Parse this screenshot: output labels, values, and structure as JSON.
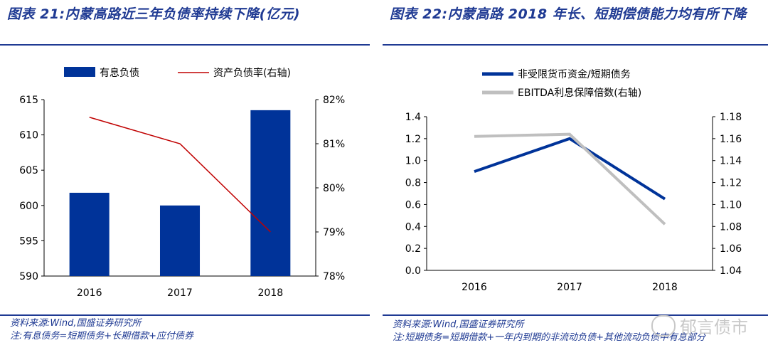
{
  "left": {
    "title": "图表 21:内蒙高路近三年负债率持续下降(亿元)",
    "source": "资料来源:Wind,国盛证券研究所",
    "note": "注:有息债务=短期债务+长期借款+应付债券"
  },
  "right": {
    "title": "图表 22:内蒙高路 2018 年长、短期偿债能力均有所下降",
    "source": "资料来源:Wind,国盛证券研究所",
    "note": "注:短期债务=短期借款+一年内到期的非流动负债+其他流动负债中有息部分"
  },
  "watermark": "郁言债市",
  "chart_data": [
    {
      "type": "bar",
      "categories": [
        "2016",
        "2017",
        "2018"
      ],
      "series": [
        {
          "name": "有息负债",
          "kind": "bar",
          "axis": "left",
          "color": "#003399",
          "values": [
            601.8,
            600.0,
            613.5
          ]
        },
        {
          "name": "资产负债率(右轴)",
          "kind": "line",
          "axis": "right",
          "color": "#c00000",
          "values": [
            81.6,
            81.0,
            79.0
          ]
        }
      ],
      "ylim": [
        590,
        615
      ],
      "yticks": [
        "590",
        "595",
        "600",
        "605",
        "610",
        "615"
      ],
      "y2lim": [
        78,
        82
      ],
      "y2ticks": [
        "78%",
        "79%",
        "80%",
        "81%",
        "82%"
      ],
      "legend_position": "top",
      "grid": false
    },
    {
      "type": "line",
      "categories": [
        "2016",
        "2017",
        "2018"
      ],
      "series": [
        {
          "name": "非受限货币资金/短期债务",
          "axis": "left",
          "color": "#003399",
          "values": [
            0.9,
            1.2,
            0.65
          ]
        },
        {
          "name": "EBITDA利息保障倍数(右轴)",
          "axis": "right",
          "color": "#bfbfbf",
          "values": [
            1.162,
            1.164,
            1.082
          ]
        }
      ],
      "ylim": [
        0.0,
        1.4
      ],
      "yticks": [
        "0.0",
        "0.2",
        "0.4",
        "0.6",
        "0.8",
        "1.0",
        "1.2",
        "1.4"
      ],
      "y2lim": [
        1.04,
        1.18
      ],
      "y2ticks": [
        "1.04",
        "1.06",
        "1.08",
        "1.10",
        "1.12",
        "1.14",
        "1.16",
        "1.18"
      ],
      "legend_position": "top",
      "grid": false
    }
  ]
}
